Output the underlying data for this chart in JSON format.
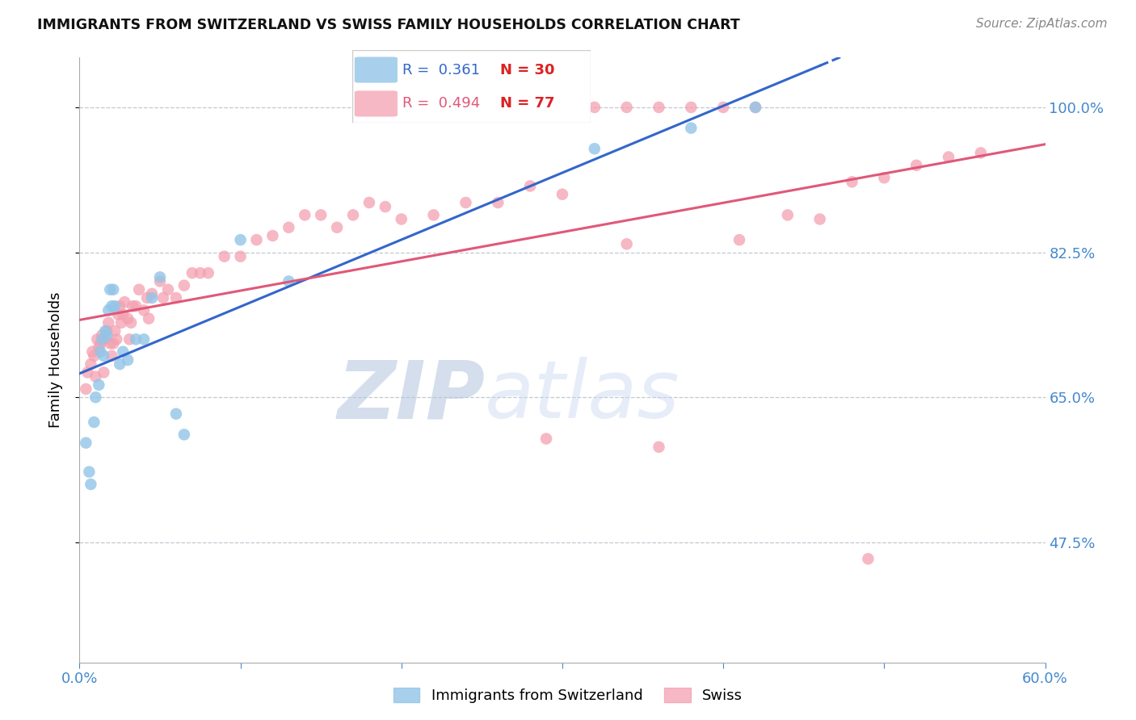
{
  "title": "IMMIGRANTS FROM SWITZERLAND VS SWISS FAMILY HOUSEHOLDS CORRELATION CHART",
  "source": "Source: ZipAtlas.com",
  "ylabel": "Family Households",
  "xlim": [
    0.0,
    0.6
  ],
  "ylim": [
    0.33,
    1.06
  ],
  "yticks": [
    0.475,
    0.65,
    0.825,
    1.0
  ],
  "ytick_labels": [
    "47.5%",
    "65.0%",
    "82.5%",
    "100.0%"
  ],
  "xticks": [
    0.0,
    0.1,
    0.2,
    0.3,
    0.4,
    0.5,
    0.6
  ],
  "xtick_labels": [
    "0.0%",
    "",
    "",
    "",
    "",
    "",
    "60.0%"
  ],
  "blue_label": "Immigrants from Switzerland",
  "pink_label": "Swiss",
  "blue_R": "0.361",
  "blue_N": "30",
  "pink_R": "0.494",
  "pink_N": "77",
  "blue_color": "#92C5E8",
  "pink_color": "#F4A0B0",
  "blue_line_color": "#3366CC",
  "pink_line_color": "#E05878",
  "axis_color": "#4488CC",
  "watermark_zip": "ZIP",
  "watermark_atlas": "atlas",
  "blue_x": [
    0.004,
    0.006,
    0.007,
    0.009,
    0.01,
    0.012,
    0.013,
    0.014,
    0.015,
    0.016,
    0.017,
    0.018,
    0.019,
    0.02,
    0.021,
    0.022,
    0.025,
    0.027,
    0.03,
    0.035,
    0.04,
    0.045,
    0.05,
    0.06,
    0.065,
    0.1,
    0.13,
    0.32,
    0.38,
    0.42
  ],
  "blue_y": [
    0.595,
    0.56,
    0.545,
    0.62,
    0.65,
    0.665,
    0.705,
    0.72,
    0.7,
    0.73,
    0.725,
    0.755,
    0.78,
    0.76,
    0.78,
    0.76,
    0.69,
    0.705,
    0.695,
    0.72,
    0.72,
    0.77,
    0.795,
    0.63,
    0.605,
    0.84,
    0.79,
    0.95,
    0.975,
    1.0
  ],
  "pink_x": [
    0.004,
    0.005,
    0.007,
    0.008,
    0.009,
    0.01,
    0.011,
    0.012,
    0.013,
    0.014,
    0.015,
    0.016,
    0.017,
    0.018,
    0.019,
    0.02,
    0.021,
    0.022,
    0.023,
    0.024,
    0.025,
    0.026,
    0.027,
    0.028,
    0.03,
    0.031,
    0.032,
    0.033,
    0.035,
    0.037,
    0.04,
    0.042,
    0.043,
    0.045,
    0.05,
    0.052,
    0.055,
    0.06,
    0.065,
    0.07,
    0.075,
    0.08,
    0.09,
    0.1,
    0.11,
    0.12,
    0.13,
    0.14,
    0.15,
    0.16,
    0.17,
    0.18,
    0.19,
    0.2,
    0.22,
    0.24,
    0.26,
    0.28,
    0.3,
    0.32,
    0.34,
    0.36,
    0.38,
    0.4,
    0.42,
    0.44,
    0.46,
    0.48,
    0.5,
    0.52,
    0.54,
    0.56,
    0.34,
    0.41,
    0.29,
    0.36,
    0.49
  ],
  "pink_y": [
    0.66,
    0.68,
    0.69,
    0.705,
    0.7,
    0.675,
    0.72,
    0.71,
    0.715,
    0.725,
    0.68,
    0.72,
    0.73,
    0.74,
    0.715,
    0.7,
    0.715,
    0.73,
    0.72,
    0.75,
    0.76,
    0.74,
    0.75,
    0.765,
    0.745,
    0.72,
    0.74,
    0.76,
    0.76,
    0.78,
    0.755,
    0.77,
    0.745,
    0.775,
    0.79,
    0.77,
    0.78,
    0.77,
    0.785,
    0.8,
    0.8,
    0.8,
    0.82,
    0.82,
    0.84,
    0.845,
    0.855,
    0.87,
    0.87,
    0.855,
    0.87,
    0.885,
    0.88,
    0.865,
    0.87,
    0.885,
    0.885,
    0.905,
    0.895,
    1.0,
    1.0,
    1.0,
    1.0,
    1.0,
    1.0,
    0.87,
    0.865,
    0.91,
    0.915,
    0.93,
    0.94,
    0.945,
    0.835,
    0.84,
    0.6,
    0.59,
    0.455
  ]
}
